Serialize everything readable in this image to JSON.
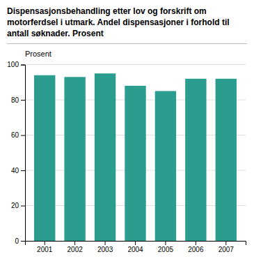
{
  "chart_data": {
    "type": "bar",
    "title": "Dispensasjonsbehandling etter lov og forskrift om\nmotorferdsel i utmark. Andel dispensasjoner i forhold til\nantall søknader. Prosent",
    "ylabel": "Prosent",
    "categories": [
      "2001",
      "2002",
      "2003",
      "2004",
      "2005",
      "2006",
      "2007"
    ],
    "values": [
      94,
      93,
      95,
      88,
      85,
      92,
      92
    ],
    "color": "#2a9d8f",
    "ylim": [
      0,
      100
    ],
    "yticks": [
      0,
      20,
      40,
      60,
      80,
      100
    ],
    "grid": true
  }
}
